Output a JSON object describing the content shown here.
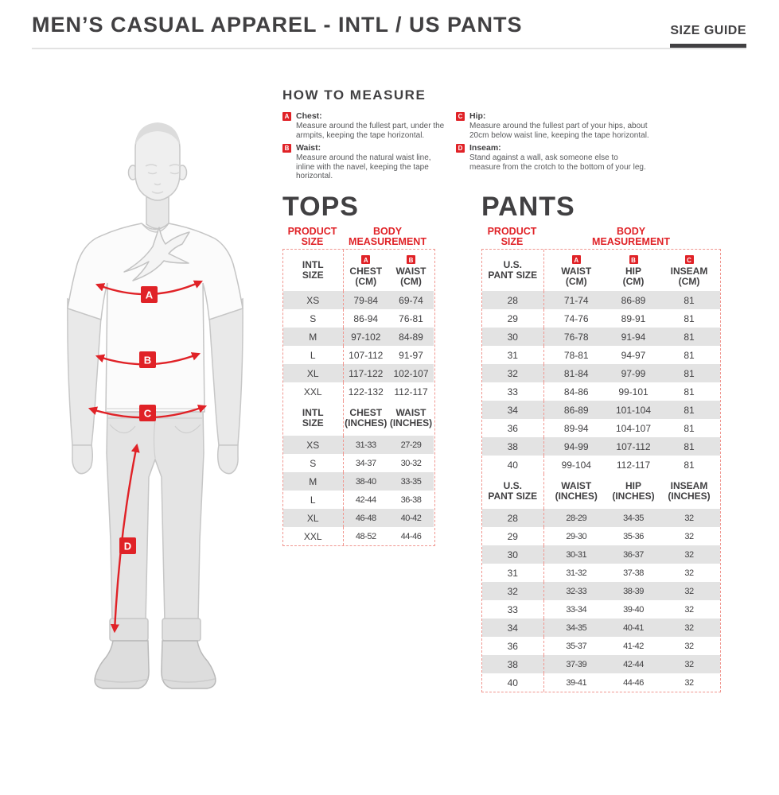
{
  "page": {
    "title": "MEN’S CASUAL APPAREL - INTL / US PANTS",
    "size_guide_label": "SIZE GUIDE"
  },
  "how_to_measure": {
    "title": "HOW TO MEASURE",
    "items": [
      {
        "letter": "A",
        "label": "Chest:",
        "text": "Measure around the fullest part, under the armpits, keeping the tape horizontal."
      },
      {
        "letter": "B",
        "label": "Waist:",
        "text": "Measure around the natural waist line, inline with the navel, keeping the tape horizontal."
      },
      {
        "letter": "C",
        "label": "Hip:",
        "text": "Measure around the fullest part of your hips, about 20cm below waist line, keeping the tape horizontal."
      },
      {
        "letter": "D",
        "label": "Inseam:",
        "text": "Stand against a wall, ask someone else to measure from the crotch to the bottom of your leg."
      }
    ]
  },
  "figure": {
    "markers": {
      "a": "A",
      "b": "B",
      "c": "C",
      "d": "D"
    }
  },
  "accent_color": "#e02227",
  "tops": {
    "title": "TOPS",
    "product_size_label": "PRODUCT\nSIZE",
    "body_measurement_label": "BODY\nMEASUREMENT",
    "groups": [
      {
        "size_header": [
          "INTL",
          "SIZE"
        ],
        "columns": [
          {
            "badge": "A",
            "lines": [
              "CHEST",
              "(CM)"
            ]
          },
          {
            "badge": "B",
            "lines": [
              "WAIST",
              "(CM)"
            ]
          }
        ],
        "rows": [
          [
            "XS",
            "79-84",
            "69-74"
          ],
          [
            "S",
            "86-94",
            "76-81"
          ],
          [
            "M",
            "97-102",
            "84-89"
          ],
          [
            "L",
            "107-112",
            "91-97"
          ],
          [
            "XL",
            "117-122",
            "102-107"
          ],
          [
            "XXL",
            "122-132",
            "112-117"
          ]
        ]
      },
      {
        "narrow": true,
        "size_header": [
          "INTL",
          "SIZE"
        ],
        "columns": [
          {
            "lines": [
              "CHEST",
              "(INCHES)"
            ]
          },
          {
            "lines": [
              "WAIST",
              "(INCHES)"
            ]
          }
        ],
        "rows": [
          [
            "XS",
            "31-33",
            "27-29"
          ],
          [
            "S",
            "34-37",
            "30-32"
          ],
          [
            "M",
            "38-40",
            "33-35"
          ],
          [
            "L",
            "42-44",
            "36-38"
          ],
          [
            "XL",
            "46-48",
            "40-42"
          ],
          [
            "XXL",
            "48-52",
            "44-46"
          ]
        ]
      }
    ]
  },
  "pants": {
    "title": "PANTS",
    "product_size_label": "PRODUCT\nSIZE",
    "body_measurement_label": "BODY\nMEASUREMENT",
    "groups": [
      {
        "size_header": [
          "U.S.",
          "PANT SIZE"
        ],
        "columns": [
          {
            "badge": "A",
            "lines": [
              "WAIST",
              "(CM)"
            ]
          },
          {
            "badge": "B",
            "lines": [
              "HIP",
              "(CM)"
            ]
          },
          {
            "badge": "C",
            "lines": [
              "INSEAM",
              "(CM)"
            ]
          }
        ],
        "rows": [
          [
            "28",
            "71-74",
            "86-89",
            "81"
          ],
          [
            "29",
            "74-76",
            "89-91",
            "81"
          ],
          [
            "30",
            "76-78",
            "91-94",
            "81"
          ],
          [
            "31",
            "78-81",
            "94-97",
            "81"
          ],
          [
            "32",
            "81-84",
            "97-99",
            "81"
          ],
          [
            "33",
            "84-86",
            "99-101",
            "81"
          ],
          [
            "34",
            "86-89",
            "101-104",
            "81"
          ],
          [
            "36",
            "89-94",
            "104-107",
            "81"
          ],
          [
            "38",
            "94-99",
            "107-112",
            "81"
          ],
          [
            "40",
            "99-104",
            "112-117",
            "81"
          ]
        ]
      },
      {
        "narrow": true,
        "size_header": [
          "U.S.",
          "PANT SIZE"
        ],
        "columns": [
          {
            "lines": [
              "WAIST",
              "(INCHES)"
            ]
          },
          {
            "lines": [
              "HIP",
              "(INCHES)"
            ]
          },
          {
            "lines": [
              "INSEAM",
              "(INCHES)"
            ]
          }
        ],
        "rows": [
          [
            "28",
            "28-29",
            "34-35",
            "32"
          ],
          [
            "29",
            "29-30",
            "35-36",
            "32"
          ],
          [
            "30",
            "30-31",
            "36-37",
            "32"
          ],
          [
            "31",
            "31-32",
            "37-38",
            "32"
          ],
          [
            "32",
            "32-33",
            "38-39",
            "32"
          ],
          [
            "33",
            "33-34",
            "39-40",
            "32"
          ],
          [
            "34",
            "34-35",
            "40-41",
            "32"
          ],
          [
            "36",
            "35-37",
            "41-42",
            "32"
          ],
          [
            "38",
            "37-39",
            "42-44",
            "32"
          ],
          [
            "40",
            "39-41",
            "44-46",
            "32"
          ]
        ]
      }
    ]
  }
}
